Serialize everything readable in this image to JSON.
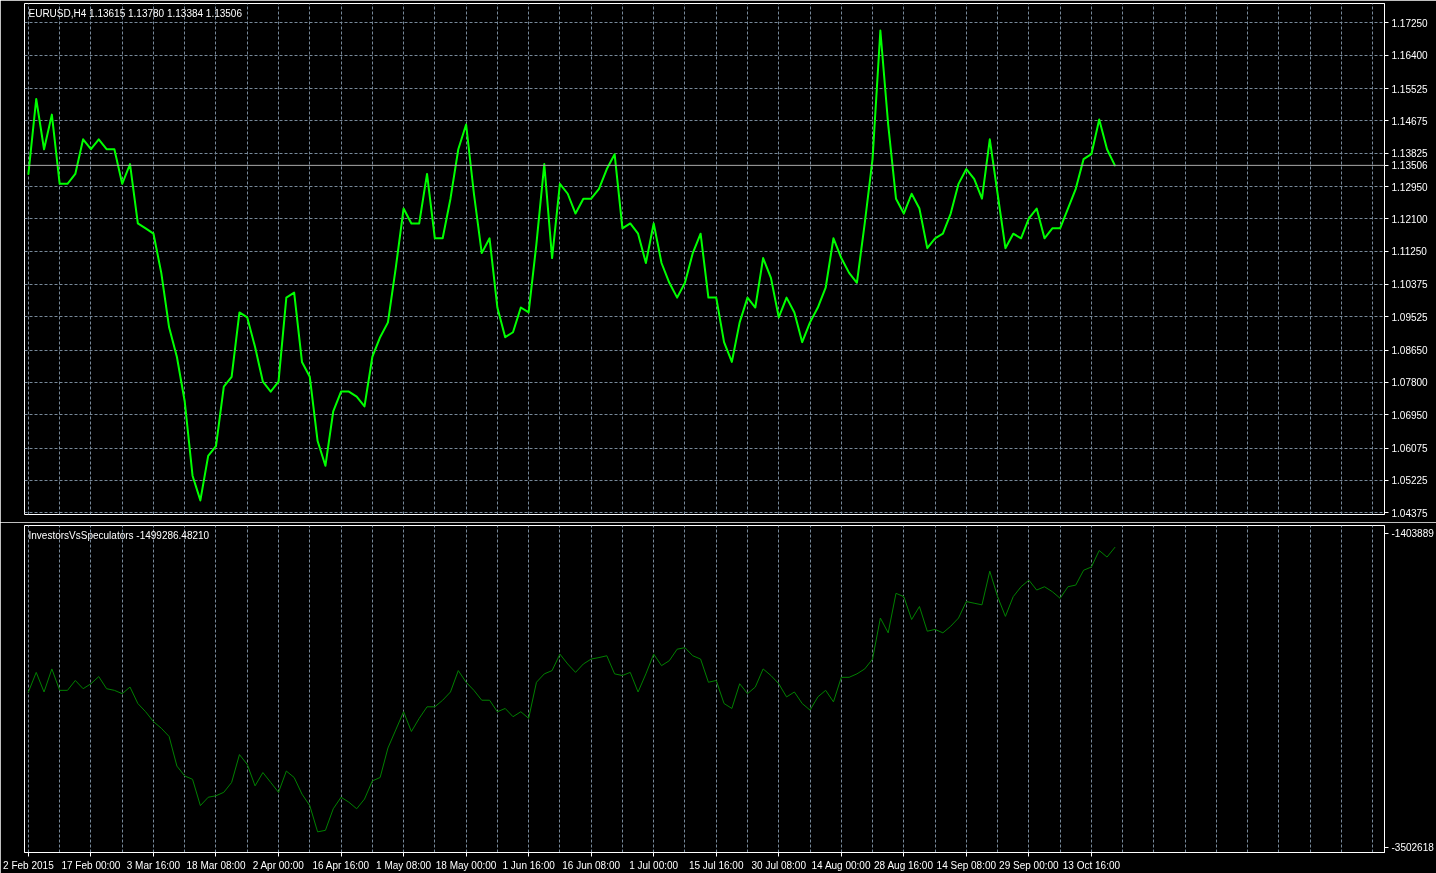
{
  "chart_data": [
    {
      "type": "line",
      "title": "EURUSD,H4 1.13615 1.13780 1.13384 1.13506",
      "categories": [
        null,
        null,
        null,
        null,
        null,
        null,
        null,
        null,
        null,
        null,
        null,
        null,
        null,
        null,
        null,
        null,
        null,
        null,
        null,
        null,
        null,
        null,
        null,
        null,
        null,
        null,
        null,
        null,
        null,
        null,
        null,
        null,
        null,
        null,
        null,
        null,
        null,
        null,
        null,
        null,
        null,
        null,
        null,
        null,
        null,
        null,
        null,
        null,
        null,
        null,
        null,
        null,
        null,
        null,
        null,
        null,
        null,
        null,
        null,
        null,
        null,
        null,
        null,
        null,
        null,
        null,
        null,
        null,
        null,
        null,
        null,
        null,
        null,
        null,
        null,
        null,
        null,
        null,
        null,
        null,
        null,
        null,
        null,
        null,
        null,
        null,
        null,
        null,
        null,
        null,
        null,
        null,
        null,
        null,
        null,
        null,
        null,
        null,
        null,
        null,
        null,
        null,
        null,
        null,
        null,
        null,
        null,
        null,
        null,
        null,
        null,
        null,
        null,
        null,
        null,
        null,
        null,
        null,
        null,
        null,
        null,
        null,
        null,
        null,
        null,
        null,
        null,
        null,
        null,
        null,
        null,
        null,
        null,
        null,
        null,
        null,
        null,
        null,
        null,
        null,
        null,
        null,
        null,
        null,
        null,
        null,
        null,
        null,
        null,
        null,
        null,
        null,
        null,
        null,
        null,
        null,
        null,
        null,
        null,
        null,
        null,
        null,
        null,
        null,
        null,
        null,
        null,
        null,
        null,
        null,
        null,
        null,
        null,
        null
      ],
      "series": [
        {
          "color": "#00ff00",
          "values": [
            1.1328,
            1.1525,
            1.1393,
            1.1484,
            1.1302,
            1.1302,
            1.1328,
            1.1419,
            1.1393,
            1.1419,
            1.1393,
            1.1393,
            1.1302,
            1.1354,
            1.1198,
            1.1185,
            1.1171,
            1.1068,
            1.0925,
            1.0847,
            1.073,
            1.0535,
            1.047,
            1.0587,
            1.0613,
            1.0769,
            1.0795,
            1.0964,
            1.0951,
            1.0873,
            1.0782,
            1.0756,
            1.0782,
            1.1003,
            1.1016,
            1.0834,
            1.0795,
            1.0626,
            1.0561,
            1.0704,
            1.0756,
            1.0756,
            1.0743,
            1.0717,
            1.0847,
            1.0899,
            1.0938,
            1.1081,
            1.1237,
            1.1198,
            1.1198,
            1.1328,
            1.1159,
            1.1159,
            1.1263,
            1.1393,
            1.1458,
            1.1276,
            1.112,
            1.1159,
            1.0977,
            1.0899,
            1.0912,
            1.0977,
            1.0964,
            1.1145,
            1.1354,
            1.1107,
            1.1302,
            1.1276,
            1.1224,
            1.1263,
            1.1263,
            1.1289,
            1.1341,
            1.138,
            1.1185,
            1.1198,
            1.1171,
            1.1094,
            1.1198,
            1.1094,
            1.1042,
            1.1003,
            1.1042,
            1.112,
            1.1171,
            1.1003,
            1.1003,
            1.0886,
            1.0834,
            1.0938,
            1.1003,
            1.0977,
            1.1107,
            1.1055,
            1.0951,
            1.1003,
            1.0964,
            1.0886,
            1.0938,
            1.0977,
            1.1029,
            1.1159,
            1.1107,
            1.1068,
            1.1042,
            1.1198,
            1.1367,
            1.1705,
            1.1458,
            1.1263,
            1.1224,
            1.1276,
            1.1237,
            1.1133,
            1.1159,
            1.1171,
            1.1224,
            1.1302,
            1.1341,
            1.1315,
            1.1263,
            1.1419,
            1.1276,
            1.1133,
            1.1171,
            1.1159,
            1.1211,
            1.1237,
            1.1159,
            1.1185,
            1.1185,
            1.1237,
            1.1289,
            1.1367,
            1.138,
            1.1471,
            1.1393,
            1.13506,
            null,
            null,
            null,
            null,
            null,
            null,
            null,
            null,
            null,
            null,
            null,
            null,
            null,
            null,
            null,
            null,
            null,
            null,
            null,
            null,
            null,
            null,
            null,
            null,
            null,
            null,
            null,
            null,
            null,
            null,
            null,
            null,
            null,
            null
          ]
        }
      ],
      "ylim": [
        1.0433,
        1.1776
      ],
      "yticks": [
        {
          "value": 1.1725,
          "label": "1.17250"
        },
        {
          "value": 1.164,
          "label": "1.16400"
        },
        {
          "value": 1.15525,
          "label": "1.15525"
        },
        {
          "value": 1.14675,
          "label": "1.14675"
        },
        {
          "value": 1.13825,
          "label": "1.13825"
        },
        {
          "value": 1.1295,
          "label": "1.12950"
        },
        {
          "value": 1.121,
          "label": "1.12100"
        },
        {
          "value": 1.1125,
          "label": "1.11250"
        },
        {
          "value": 1.10375,
          "label": "1.10375"
        },
        {
          "value": 1.09525,
          "label": "1.09525"
        },
        {
          "value": 1.0865,
          "label": "1.08650"
        },
        {
          "value": 1.078,
          "label": "1.07800"
        },
        {
          "value": 1.0695,
          "label": "1.06950"
        },
        {
          "value": 1.06075,
          "label": "1.06075"
        },
        {
          "value": 1.05225,
          "label": "1.05225"
        },
        {
          "value": 1.04375,
          "label": "1.04375"
        }
      ],
      "grid": true,
      "tick_labels": "y",
      "ref_lines": [
        {
          "axis": "y",
          "value": 1.13506,
          "label": "1.13506",
          "color": "#a9a9a9"
        }
      ]
    },
    {
      "type": "line",
      "title": "InvestorsVsSpeculators -1499286.48210",
      "categories": [
        "2 Feb 2015",
        null,
        null,
        null,
        null,
        null,
        null,
        null,
        "17 Feb 00:00",
        null,
        null,
        null,
        null,
        null,
        null,
        null,
        "3 Mar 16:00",
        null,
        null,
        null,
        null,
        null,
        null,
        null,
        "18 Mar 08:00",
        null,
        null,
        null,
        null,
        null,
        null,
        null,
        "2 Apr 00:00",
        null,
        null,
        null,
        null,
        null,
        null,
        null,
        "16 Apr 16:00",
        null,
        null,
        null,
        null,
        null,
        null,
        null,
        "1 May 08:00",
        null,
        null,
        null,
        null,
        null,
        null,
        null,
        "18 May 00:00",
        null,
        null,
        null,
        null,
        null,
        null,
        null,
        "1 Jun 16:00",
        null,
        null,
        null,
        null,
        null,
        null,
        null,
        "16 Jun 08:00",
        null,
        null,
        null,
        null,
        null,
        null,
        null,
        "1 Jul 00:00",
        null,
        null,
        null,
        null,
        null,
        null,
        null,
        "15 Jul 16:00",
        null,
        null,
        null,
        null,
        null,
        null,
        null,
        "30 Jul 08:00",
        null,
        null,
        null,
        null,
        null,
        null,
        null,
        "14 Aug 00:00",
        null,
        null,
        null,
        null,
        null,
        null,
        null,
        "28 Aug 16:00",
        null,
        null,
        null,
        null,
        null,
        null,
        null,
        "14 Sep 08:00",
        null,
        null,
        null,
        null,
        null,
        null,
        null,
        "29 Sep 00:00",
        null,
        null,
        null,
        null,
        null,
        null,
        null,
        "13 Oct 16:00",
        null,
        null,
        null,
        null,
        null,
        null,
        null,
        null,
        null,
        null,
        null,
        null,
        null,
        null,
        null,
        null,
        null,
        null,
        null,
        null,
        null,
        null,
        null,
        null,
        null,
        null,
        null,
        null,
        null,
        null,
        null,
        null,
        null,
        null,
        null,
        null,
        null
      ],
      "series": [
        {
          "color": "#008000",
          "values": [
            -2465000,
            -2334000,
            -2465000,
            -2311000,
            -2454000,
            -2454000,
            -2388000,
            -2443000,
            -2410000,
            -2362000,
            -2443000,
            -2454000,
            -2476000,
            -2432000,
            -2542000,
            -2597000,
            -2663000,
            -2707000,
            -2762000,
            -2960000,
            -3026000,
            -3048000,
            -3224000,
            -3168000,
            -3158000,
            -3135000,
            -3069000,
            -2883000,
            -2949000,
            -3092000,
            -3003000,
            -3069000,
            -3135000,
            -2993000,
            -3036000,
            -3147000,
            -3224000,
            -3399000,
            -3389000,
            -3245000,
            -3168000,
            -3201000,
            -3245000,
            -3180000,
            -3059000,
            -3036000,
            -2839000,
            -2718000,
            -2597000,
            -2729000,
            -2641000,
            -2564000,
            -2564000,
            -2520000,
            -2465000,
            -2322000,
            -2400000,
            -2454000,
            -2520000,
            -2520000,
            -2597000,
            -2575000,
            -2630000,
            -2597000,
            -2641000,
            -2400000,
            -2344000,
            -2322000,
            -2212000,
            -2278000,
            -2334000,
            -2278000,
            -2245000,
            -2235000,
            -2223000,
            -2344000,
            -2355000,
            -2334000,
            -2465000,
            -2344000,
            -2212000,
            -2289000,
            -2256000,
            -2179000,
            -2169000,
            -2223000,
            -2245000,
            -2400000,
            -2388000,
            -2542000,
            -2575000,
            -2410000,
            -2476000,
            -2432000,
            -2311000,
            -2355000,
            -2410000,
            -2498000,
            -2465000,
            -2542000,
            -2586000,
            -2498000,
            -2454000,
            -2531000,
            -2367000,
            -2367000,
            -2344000,
            -2311000,
            -2245000,
            -1971000,
            -2070000,
            -1806000,
            -1828000,
            -1981000,
            -1894000,
            -2059000,
            -2047000,
            -2070000,
            -2026000,
            -1971000,
            -1861000,
            -1872000,
            -1883000,
            -1658000,
            -1828000,
            -1960000,
            -1828000,
            -1762000,
            -1718000,
            -1784000,
            -1762000,
            -1795000,
            -1839000,
            -1762000,
            -1751000,
            -1652000,
            -1630000,
            -1520000,
            -1564000,
            -1499286,
            null,
            null,
            null,
            null,
            null,
            null,
            null,
            null,
            null,
            null,
            null,
            null,
            null,
            null,
            null,
            null,
            null,
            null,
            null,
            null,
            null,
            null,
            null,
            null,
            null,
            null,
            null,
            null,
            null,
            null,
            null,
            null,
            null,
            null
          ]
        }
      ],
      "ylim": [
        -3537000,
        -1353000
      ],
      "yticks": [
        -1403889,
        -3502618
      ],
      "grid": "x"
    }
  ]
}
